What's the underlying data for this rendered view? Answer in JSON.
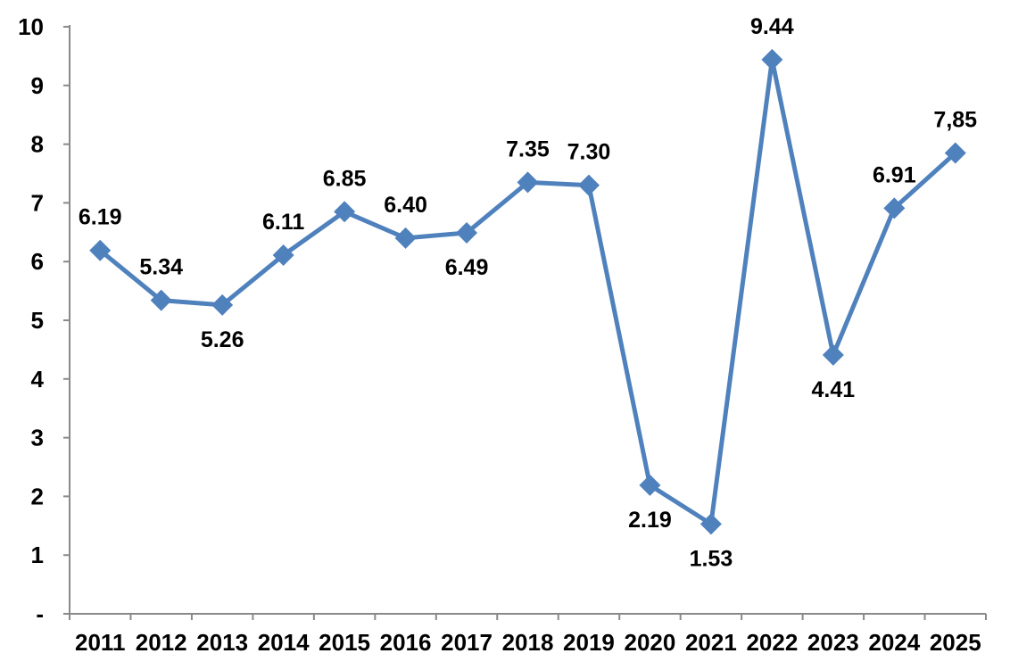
{
  "chart_data": {
    "type": "line",
    "title": "",
    "xlabel": "",
    "ylabel": "",
    "x": [
      "2011",
      "2012",
      "2013",
      "2014",
      "2015",
      "2016",
      "2017",
      "2018",
      "2019",
      "2020",
      "2021",
      "2022",
      "2023",
      "2024",
      "2025"
    ],
    "series": [
      {
        "name": "series-1",
        "values": [
          6.19,
          5.34,
          5.26,
          6.11,
          6.85,
          6.4,
          6.49,
          7.35,
          7.3,
          2.19,
          1.53,
          9.44,
          4.41,
          6.91,
          7.85
        ]
      }
    ],
    "data_labels": [
      "6.19",
      "5.34",
      "5.26",
      "6.11",
      "6.85",
      "6.40",
      "6.49",
      "7.35",
      "7.30",
      "2.19",
      "1.53",
      "9.44",
      "4.41",
      "6.91",
      "7,85"
    ],
    "label_position": [
      "above",
      "above",
      "below",
      "above",
      "above",
      "above",
      "below",
      "above",
      "above",
      "below",
      "below",
      "above",
      "below",
      "above",
      "above"
    ],
    "y_tick_labels": [
      "-",
      "1",
      "2",
      "3",
      "4",
      "5",
      "6",
      "7",
      "8",
      "9",
      "10"
    ],
    "ylim": [
      0,
      10
    ],
    "grid": false,
    "legend": "none",
    "marker": "diamond",
    "colors": {
      "line": "#4F81BD",
      "marker": "#4F81BD",
      "axis": "#898989",
      "text": "#000000",
      "background": "#ffffff"
    }
  }
}
